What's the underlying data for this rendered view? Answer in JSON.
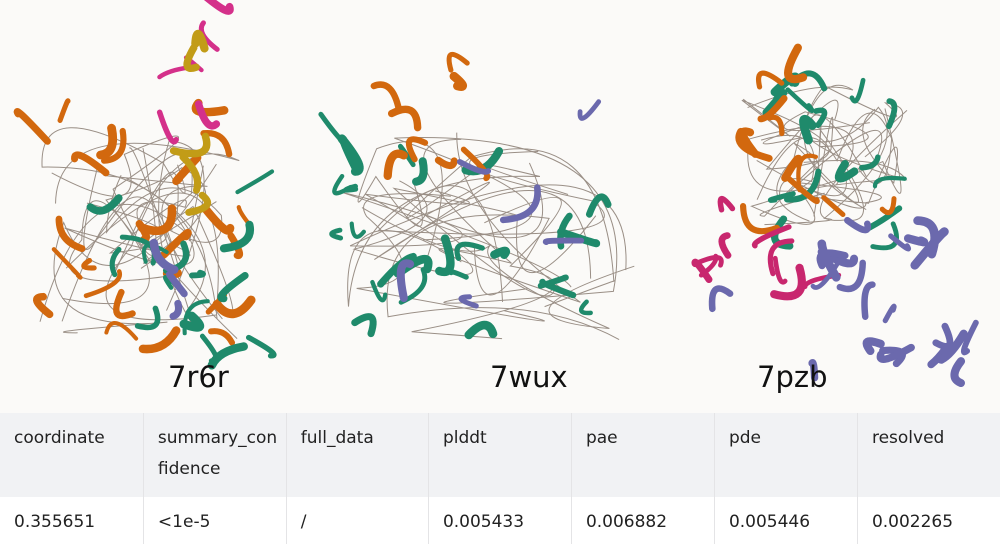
{
  "structures": [
    {
      "id": "7r6r",
      "colors": [
        "#d2680e",
        "#1f8a6b",
        "#6b69ad",
        "#d4308a",
        "#c29c17"
      ]
    },
    {
      "id": "7wux",
      "colors": [
        "#1f8a6b",
        "#d2680e",
        "#6b69ad"
      ]
    },
    {
      "id": "7pzb",
      "colors": [
        "#1f8a6b",
        "#d2680e",
        "#6b69ad",
        "#c8276e"
      ]
    }
  ],
  "table": {
    "headers": [
      "coordinate",
      "summary_confidence",
      "full_data",
      "plddt",
      "pae",
      "pde",
      "resolved"
    ],
    "row": [
      "0.355651",
      "<1e-5",
      "/",
      "0.005433",
      "0.006882",
      "0.005446",
      "0.002265"
    ]
  }
}
